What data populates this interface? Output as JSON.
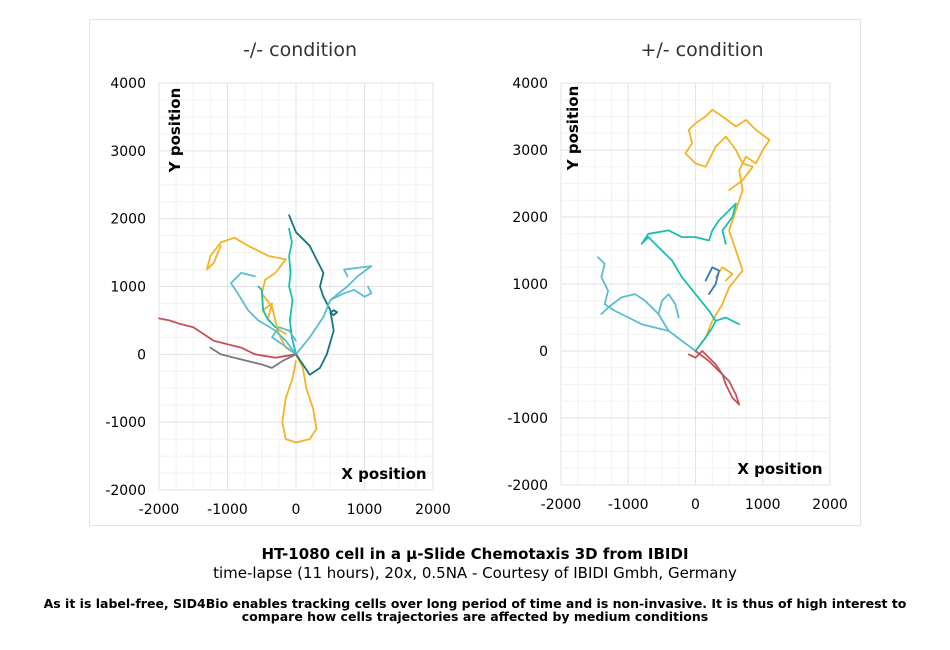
{
  "caption": {
    "title": "HT-1080 cell in a µ-Slide Chemotaxis 3D from IBIDI",
    "subtitle": "time-lapse (11 hours), 20x, 0.5NA - Courtesy of IBIDI Gmbh, Germany",
    "body": "As it is label-free, SID4Bio enables tracking cells over long period of time and is non-invasive. It is thus of high interest to compare how cells trajectories are affected by medium conditions"
  },
  "colors": {
    "gold": "#F5B324",
    "teal": "#19BFAE",
    "dark_teal": "#11777C",
    "light_blue": "#5BBECE",
    "blue": "#2E7DB8",
    "red": "#C65158",
    "gray": "#7A7A7A",
    "grid": "#ececec"
  },
  "chart_data": [
    {
      "type": "line",
      "title": "-/- condition",
      "xlabel": "X position",
      "ylabel": "Y position",
      "xlim": [
        -2000,
        2000
      ],
      "ylim": [
        -2000,
        4000
      ],
      "xticks": [
        -2000,
        -1000,
        0,
        1000,
        2000
      ],
      "yticks": [
        -2000,
        -1000,
        0,
        1000,
        2000,
        3000,
        4000
      ],
      "grid": true,
      "series": [
        {
          "color": "gold",
          "points": [
            [
              0,
              0
            ],
            [
              -150,
              100
            ],
            [
              -250,
              300
            ],
            [
              -300,
              500
            ],
            [
              -350,
              700
            ],
            [
              -500,
              900
            ],
            [
              -450,
              1100
            ],
            [
              -300,
              1200
            ],
            [
              -150,
              1400
            ],
            [
              -400,
              1450
            ],
            [
              -700,
              1600
            ],
            [
              -900,
              1720
            ],
            [
              -1100,
              1650
            ],
            [
              -1250,
              1450
            ],
            [
              -1300,
              1250
            ],
            [
              -1200,
              1350
            ],
            [
              -1100,
              1600
            ]
          ]
        },
        {
          "color": "gold",
          "points": [
            [
              0,
              0
            ],
            [
              100,
              -200
            ],
            [
              150,
              -500
            ],
            [
              250,
              -800
            ],
            [
              300,
              -1100
            ],
            [
              200,
              -1250
            ],
            [
              0,
              -1300
            ],
            [
              -150,
              -1250
            ],
            [
              -200,
              -1000
            ],
            [
              -150,
              -650
            ],
            [
              -50,
              -350
            ],
            [
              0,
              -100
            ]
          ]
        },
        {
          "color": "gold",
          "points": [
            [
              -150,
              300
            ],
            [
              -300,
              400
            ],
            [
              -400,
              500
            ],
            [
              -480,
              650
            ],
            [
              -350,
              750
            ],
            [
              -400,
              550
            ]
          ]
        },
        {
          "color": "dark_teal",
          "points": [
            [
              0,
              0
            ],
            [
              100,
              -150
            ],
            [
              200,
              -300
            ],
            [
              350,
              -200
            ],
            [
              450,
              0
            ],
            [
              550,
              350
            ],
            [
              500,
              650
            ],
            [
              400,
              850
            ],
            [
              350,
              1000
            ],
            [
              400,
              1200
            ],
            [
              300,
              1400
            ],
            [
              200,
              1600
            ],
            [
              0,
              1800
            ],
            [
              -100,
              2050
            ]
          ]
        },
        {
          "color": "dark_teal",
          "points": [
            [
              550,
              580
            ],
            [
              600,
              620
            ],
            [
              550,
              650
            ],
            [
              500,
              610
            ],
            [
              550,
              580
            ]
          ]
        },
        {
          "color": "teal",
          "points": [
            [
              0,
              0
            ],
            [
              -60,
              250
            ],
            [
              -90,
              500
            ],
            [
              -50,
              800
            ],
            [
              -100,
              1000
            ],
            [
              -80,
              1200
            ],
            [
              -100,
              1450
            ],
            [
              -60,
              1650
            ],
            [
              -100,
              1850
            ]
          ]
        },
        {
          "color": "teal",
          "points": [
            [
              -300,
              400
            ],
            [
              -420,
              530
            ],
            [
              -480,
              650
            ],
            [
              -500,
              950
            ],
            [
              -550,
              1000
            ]
          ]
        },
        {
          "color": "light_blue",
          "points": [
            [
              0,
              0
            ],
            [
              -150,
              200
            ],
            [
              -300,
              350
            ],
            [
              -550,
              500
            ],
            [
              -700,
              650
            ],
            [
              -850,
              900
            ],
            [
              -950,
              1050
            ],
            [
              -800,
              1200
            ],
            [
              -600,
              1150
            ]
          ]
        },
        {
          "color": "light_blue",
          "points": [
            [
              0,
              0
            ],
            [
              200,
              250
            ],
            [
              400,
              550
            ],
            [
              500,
              800
            ],
            [
              700,
              900
            ],
            [
              850,
              950
            ],
            [
              1000,
              850
            ],
            [
              1100,
              900
            ],
            [
              1050,
              1000
            ]
          ]
        },
        {
          "color": "light_blue",
          "points": [
            [
              500,
              800
            ],
            [
              750,
              1000
            ],
            [
              900,
              1150
            ],
            [
              1100,
              1300
            ],
            [
              700,
              1250
            ],
            [
              750,
              1150
            ]
          ]
        },
        {
          "color": "light_blue",
          "points": [
            [
              0,
              0
            ],
            [
              -200,
              150
            ],
            [
              -350,
              250
            ],
            [
              -250,
              400
            ],
            [
              -100,
              350
            ],
            [
              0,
              200
            ]
          ]
        },
        {
          "color": "red",
          "points": [
            [
              0,
              0
            ],
            [
              -300,
              -50
            ],
            [
              -600,
              0
            ],
            [
              -800,
              100
            ],
            [
              -1000,
              150
            ],
            [
              -1200,
              200
            ],
            [
              -1350,
              300
            ],
            [
              -1500,
              400
            ],
            [
              -1700,
              450
            ],
            [
              -1850,
              500
            ],
            [
              -2000,
              530
            ]
          ]
        },
        {
          "color": "gray",
          "points": [
            [
              0,
              0
            ],
            [
              -200,
              -100
            ],
            [
              -350,
              -200
            ],
            [
              -500,
              -150
            ],
            [
              -700,
              -100
            ],
            [
              -900,
              -50
            ],
            [
              -1100,
              0
            ],
            [
              -1250,
              100
            ]
          ]
        }
      ]
    },
    {
      "type": "line",
      "title": "+/- condition",
      "xlabel": "X position",
      "ylabel": "Y position",
      "xlim": [
        -2000,
        2000
      ],
      "ylim": [
        -2000,
        4000
      ],
      "xticks": [
        -2000,
        -1000,
        0,
        1000,
        2000
      ],
      "yticks": [
        -2000,
        -1000,
        0,
        1000,
        2000,
        3000,
        4000
      ],
      "grid": true,
      "series": [
        {
          "color": "gold",
          "points": [
            [
              0,
              0
            ],
            [
              150,
              200
            ],
            [
              250,
              450
            ],
            [
              400,
              700
            ],
            [
              500,
              950
            ],
            [
              700,
              1200
            ],
            [
              600,
              1500
            ],
            [
              500,
              1800
            ],
            [
              600,
              2100
            ],
            [
              700,
              2400
            ],
            [
              650,
              2700
            ],
            [
              750,
              2900
            ],
            [
              900,
              2800
            ],
            [
              1000,
              3000
            ],
            [
              1100,
              3150
            ],
            [
              900,
              3300
            ],
            [
              750,
              3450
            ],
            [
              600,
              3350
            ],
            [
              400,
              3500
            ],
            [
              250,
              3600
            ],
            [
              150,
              3500
            ],
            [
              0,
              3400
            ],
            [
              -100,
              3300
            ],
            [
              -50,
              3100
            ],
            [
              -150,
              2950
            ],
            [
              0,
              2800
            ],
            [
              150,
              2750
            ],
            [
              300,
              3050
            ],
            [
              450,
              3200
            ],
            [
              600,
              3000
            ],
            [
              700,
              2800
            ],
            [
              850,
              2750
            ],
            [
              700,
              2550
            ],
            [
              500,
              2400
            ]
          ]
        },
        {
          "color": "gold",
          "points": [
            [
              450,
              1050
            ],
            [
              550,
              1150
            ],
            [
              400,
              1250
            ],
            [
              300,
              1100
            ]
          ]
        },
        {
          "color": "teal",
          "points": [
            [
              0,
              0
            ],
            [
              150,
              200
            ],
            [
              250,
              350
            ],
            [
              300,
              450
            ],
            [
              200,
              600
            ],
            [
              0,
              850
            ],
            [
              -200,
              1100
            ],
            [
              -350,
              1350
            ],
            [
              -550,
              1550
            ],
            [
              -700,
              1700
            ],
            [
              -800,
              1600
            ],
            [
              -700,
              1750
            ],
            [
              -400,
              1800
            ],
            [
              -200,
              1700
            ],
            [
              0,
              1700
            ],
            [
              200,
              1650
            ],
            [
              250,
              1800
            ],
            [
              350,
              1950
            ],
            [
              600,
              2200
            ],
            [
              550,
              2000
            ],
            [
              400,
              1800
            ],
            [
              450,
              1600
            ]
          ]
        },
        {
          "color": "teal",
          "points": [
            [
              300,
              450
            ],
            [
              450,
              500
            ],
            [
              550,
              450
            ],
            [
              650,
              400
            ]
          ]
        },
        {
          "color": "light_blue",
          "points": [
            [
              0,
              0
            ],
            [
              -200,
              150
            ],
            [
              -400,
              300
            ],
            [
              -600,
              350
            ],
            [
              -800,
              400
            ],
            [
              -1000,
              500
            ],
            [
              -1200,
              600
            ],
            [
              -1350,
              700
            ],
            [
              -1300,
              900
            ],
            [
              -1400,
              1100
            ],
            [
              -1350,
              1300
            ],
            [
              -1450,
              1400
            ]
          ]
        },
        {
          "color": "light_blue",
          "points": [
            [
              -400,
              300
            ],
            [
              -550,
              550
            ],
            [
              -750,
              750
            ],
            [
              -900,
              850
            ],
            [
              -1100,
              800
            ],
            [
              -1300,
              650
            ],
            [
              -1400,
              550
            ]
          ]
        },
        {
          "color": "light_blue",
          "points": [
            [
              -550,
              550
            ],
            [
              -500,
              750
            ],
            [
              -400,
              850
            ],
            [
              -300,
              700
            ],
            [
              -250,
              500
            ]
          ]
        },
        {
          "color": "blue",
          "points": [
            [
              200,
              850
            ],
            [
              300,
              1000
            ],
            [
              350,
              1200
            ],
            [
              250,
              1250
            ],
            [
              150,
              1050
            ]
          ]
        },
        {
          "color": "red",
          "points": [
            [
              0,
              0
            ],
            [
              200,
              -150
            ],
            [
              350,
              -300
            ],
            [
              500,
              -450
            ],
            [
              600,
              -650
            ],
            [
              650,
              -800
            ],
            [
              550,
              -700
            ],
            [
              450,
              -500
            ],
            [
              400,
              -350
            ],
            [
              300,
              -200
            ],
            [
              200,
              -100
            ],
            [
              100,
              0
            ],
            [
              0,
              -100
            ],
            [
              -100,
              -50
            ]
          ]
        }
      ]
    }
  ]
}
